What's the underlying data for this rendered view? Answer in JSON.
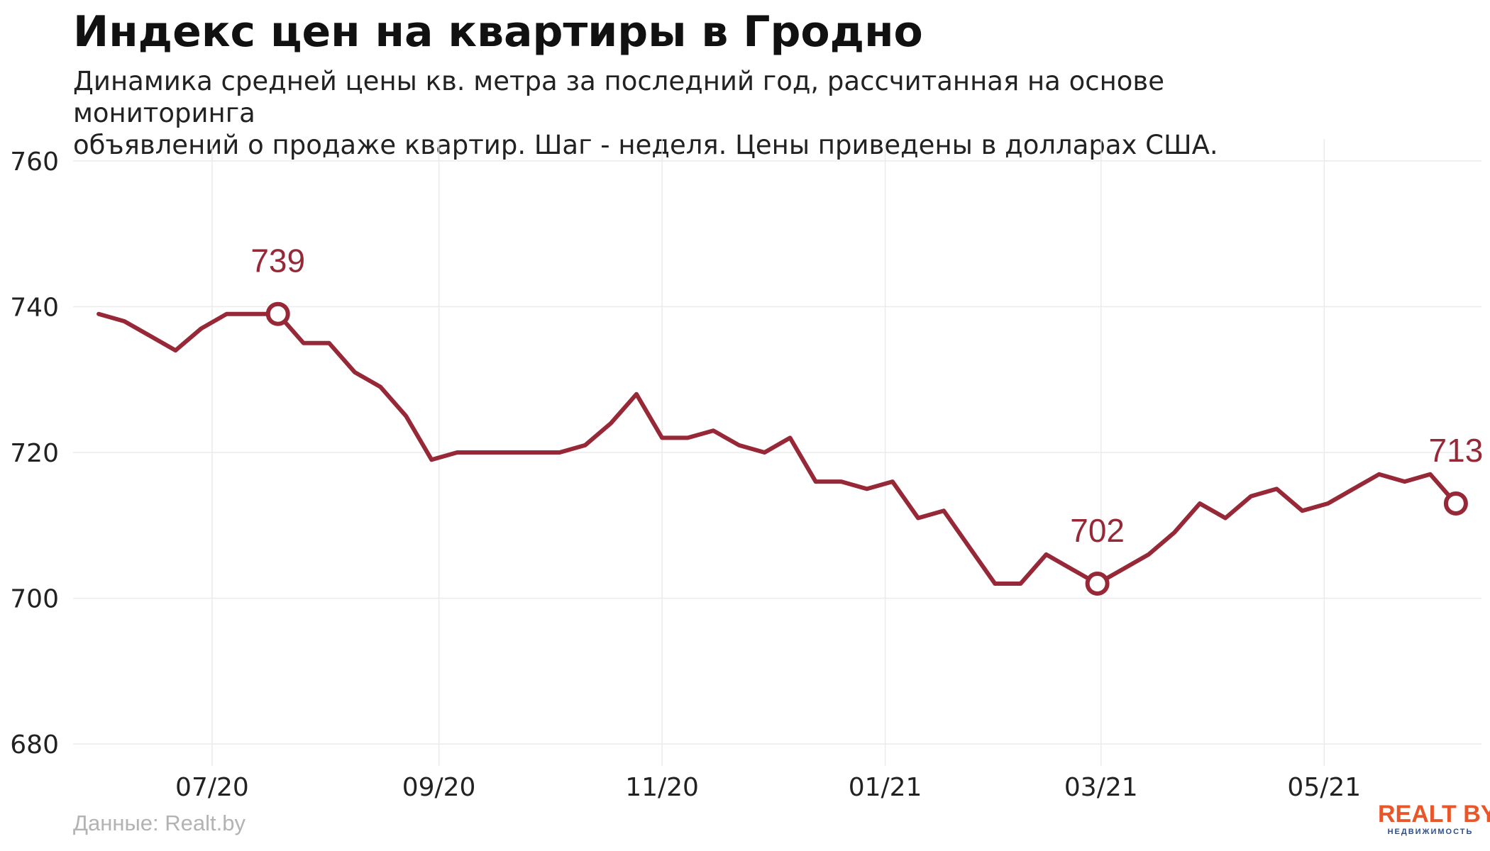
{
  "header": {
    "title": "Индекс цен на квартиры в Гродно",
    "subtitle_line1": "Динамика средней цены кв. метра за последний год, рассчитанная на основе мониторинга",
    "subtitle_line2": "объявлений о продаже квартир. Шаг - неделя. Цены приведены в долларах США."
  },
  "footer": {
    "source": "Данные: Realt.by",
    "logo_main": "REALT BY",
    "logo_sub": "НЕДВИЖИМОСТЬ"
  },
  "colors": {
    "line": "#962837",
    "grid": "#ebebeb",
    "tick_text": "#222222"
  },
  "chart_data": {
    "type": "line",
    "title": "Индекс цен на квартиры в Гродно",
    "xlabel": "",
    "ylabel": "",
    "ylim": [
      677,
      763
    ],
    "yticks": [
      680,
      700,
      720,
      740,
      760
    ],
    "x_start": "2020-05-31",
    "x_step_days": 7,
    "xticks": [
      {
        "label": "07/20",
        "date": "2020-07-01"
      },
      {
        "label": "09/20",
        "date": "2020-09-01"
      },
      {
        "label": "11/20",
        "date": "2020-11-01"
      },
      {
        "label": "01/21",
        "date": "2021-01-01"
      },
      {
        "label": "03/21",
        "date": "2021-03-01"
      },
      {
        "label": "05/21",
        "date": "2021-05-01"
      }
    ],
    "grid": true,
    "legend": "none",
    "series": [
      {
        "values": [
          739,
          738,
          736,
          734,
          737,
          739,
          739,
          739,
          735,
          735,
          731,
          729,
          725,
          719,
          720,
          720,
          720,
          720,
          720,
          721,
          724,
          728,
          722,
          722,
          723,
          721,
          720,
          722,
          716,
          716,
          715,
          716,
          711,
          712,
          707,
          702,
          702,
          706,
          704,
          702,
          704,
          706,
          709,
          713,
          711,
          714,
          715,
          712,
          713,
          715,
          717,
          716,
          717,
          713
        ]
      }
    ],
    "annotations": [
      {
        "index": 7,
        "label": "739"
      },
      {
        "index": 39,
        "label": "702"
      },
      {
        "index": 53,
        "label": "713"
      }
    ]
  }
}
